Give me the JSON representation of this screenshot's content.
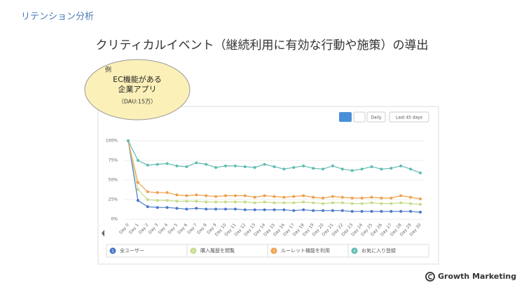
{
  "slide": {
    "section": "リテンション分析",
    "heading": "クリティカルイベント（継続利用に有効な行動や施策）の導出",
    "bubble": {
      "tag": "例",
      "line1": "EC機能がある",
      "line2": "企業アプリ",
      "line3": "（DAU:15万）"
    },
    "controls": {
      "interval": "Daily",
      "range": "Last 45 days"
    },
    "footer": "Growth Marketing"
  },
  "chart_data": {
    "type": "line",
    "categories": [
      "Day 0",
      "Day 1",
      "Day 2",
      "Day 3",
      "Day 4",
      "Day 5",
      "Day 6",
      "Day 7",
      "Day 8",
      "Day 9",
      "Day 10",
      "Day 11",
      "Day 12",
      "Day 13",
      "Day 14",
      "Day 15",
      "Day 16",
      "Day 17",
      "Day 18",
      "Day 19",
      "Day 20",
      "Day 21",
      "Day 22",
      "Day 23",
      "Day 24",
      "Day 25",
      "Day 26",
      "Day 27",
      "Day 28",
      "Day 29",
      "Day 30"
    ],
    "ylim": [
      0,
      100
    ],
    "yticks": [
      {
        "value": 0,
        "label": "0%"
      },
      {
        "value": 25,
        "label": "25%"
      },
      {
        "value": 50,
        "label": "50%"
      },
      {
        "value": 75,
        "label": "75%"
      },
      {
        "value": 100,
        "label": "100%"
      }
    ],
    "grid": true,
    "series": [
      {
        "name": "全ユーザー",
        "marker_label": "1",
        "color": "#4a78c9",
        "values": [
          100,
          24,
          16,
          15,
          15,
          14,
          13,
          14,
          13,
          13,
          13,
          13,
          12,
          12,
          12,
          12,
          12,
          11,
          12,
          11,
          11,
          11,
          11,
          10,
          10,
          10,
          10,
          10,
          10,
          10,
          9
        ]
      },
      {
        "name": "購入履歴を閲覧",
        "marker_label": "2",
        "color": "#c5dc8a",
        "values": [
          100,
          38,
          25,
          24,
          24,
          23,
          23,
          23,
          22,
          22,
          22,
          22,
          22,
          21,
          22,
          21,
          21,
          21,
          22,
          21,
          20,
          21,
          21,
          20,
          20,
          21,
          20,
          20,
          21,
          20,
          19
        ]
      },
      {
        "name": "ルーレット機能を利用",
        "marker_label": "3",
        "color": "#f0a04b",
        "values": [
          100,
          47,
          35,
          34,
          34,
          31,
          30,
          31,
          30,
          29,
          30,
          30,
          30,
          28,
          30,
          29,
          28,
          29,
          30,
          28,
          27,
          29,
          28,
          27,
          27,
          28,
          27,
          27,
          30,
          28,
          26
        ]
      },
      {
        "name": "お気に入り登録",
        "marker_label": "4",
        "color": "#5fbcb2",
        "values": [
          100,
          75,
          69,
          70,
          71,
          68,
          67,
          72,
          70,
          66,
          68,
          68,
          67,
          66,
          70,
          67,
          64,
          66,
          68,
          65,
          64,
          68,
          64,
          62,
          64,
          67,
          64,
          65,
          68,
          64,
          59
        ]
      }
    ]
  }
}
